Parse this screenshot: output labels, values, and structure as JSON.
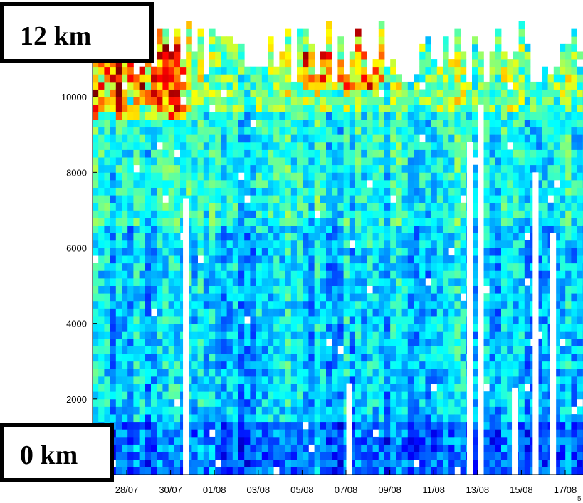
{
  "chart_data": {
    "type": "heatmap",
    "title": "",
    "xlabel": "",
    "ylabel": "",
    "y_unit": "m",
    "ylim": [
      0,
      12000
    ],
    "y_ticks": [
      0,
      2000,
      4000,
      6000,
      8000,
      10000,
      12000
    ],
    "y_tick_labels": [
      "0",
      "2000",
      "4000",
      "6000",
      "8000",
      "10000",
      "12000"
    ],
    "x_tick_labels": [
      "28/07",
      "30/07",
      "01/08",
      "03/08",
      "05/08",
      "07/08",
      "09/08",
      "11/08",
      "13/08",
      "15/08",
      "17/08"
    ],
    "x_range_days": {
      "start": "27/07",
      "end": "17/08"
    },
    "colormap": "jet",
    "missing_color": "#ffffff",
    "grid": false,
    "legend": "none",
    "corner_label": "5",
    "row_height_m": 200,
    "missing_profiles": [
      {
        "day": "30/07",
        "frac": 0.7,
        "below_m": 7300
      },
      {
        "day": "07/08",
        "frac": 0.15,
        "below_m": 2400
      },
      {
        "day": "12/08",
        "frac": 0.65,
        "below_m": 8800
      },
      {
        "day": "13/08",
        "frac": 0.15,
        "below_m": 9800
      },
      {
        "day": "14/08",
        "frac": 0.7,
        "below_m": 2300
      },
      {
        "day": "15/08",
        "frac": 0.65,
        "below_m": 8000
      },
      {
        "day": "16/08",
        "frac": 0.45,
        "below_m": 6400
      }
    ]
  },
  "annotations": {
    "top": "12 km",
    "bottom": "0 km"
  }
}
